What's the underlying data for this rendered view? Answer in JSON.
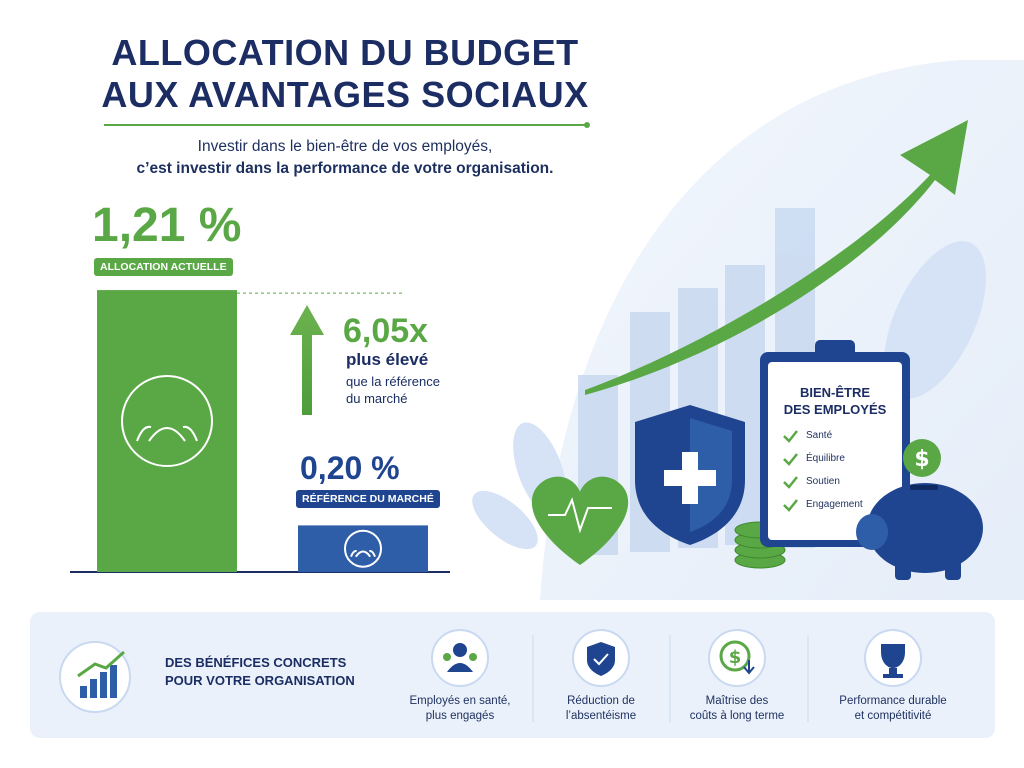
{
  "header": {
    "title_lines": [
      "ALLOCATION DU BUDGET",
      "AUX AVANTAGES SOCIAUX"
    ],
    "subtitle_lines": [
      "Investir dans le bien-être de vos employés,",
      "c’est investir dans la performance de votre organisation."
    ]
  },
  "chart_data": {
    "type": "bar",
    "categories": [
      "ALLOCATION ACTUELLE",
      "RÉFÉRENCE DU MARCHÉ"
    ],
    "values": [
      1.21,
      0.2
    ],
    "value_labels": [
      "1,21 %",
      "0,20 %"
    ],
    "colors": [
      "#5aa845",
      "#2f5ea8"
    ]
  },
  "comparison": {
    "multiplier": "6,05x",
    "headline": "plus élevé",
    "detail_lines": [
      "que la référence",
      "du marché"
    ]
  },
  "illustration": {
    "clipboard_title_lines": [
      "BIEN-ÊTRE",
      "DES EMPLOYÉS"
    ],
    "checklist": [
      "Santé",
      "Équilibre",
      "Soutien",
      "Engagement"
    ]
  },
  "footer": {
    "heading_lines": [
      "DES BÉNÉFICES CONCRETS",
      "POUR VOTRE ORGANISATION"
    ],
    "benefits": [
      {
        "lines": [
          "Employés en santé,",
          "plus engagés"
        ]
      },
      {
        "lines": [
          "Réduction de",
          "l’absentéisme"
        ]
      },
      {
        "lines": [
          "Maîtrise des",
          "coûts à long terme"
        ]
      },
      {
        "lines": [
          "Performance durable",
          "et compétitivité"
        ]
      }
    ]
  }
}
